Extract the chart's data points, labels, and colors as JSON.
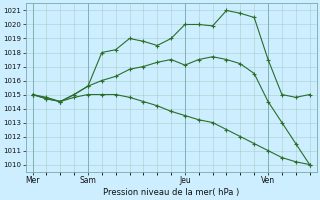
{
  "title": "",
  "xlabel": "Pression niveau de la mer( hPa )",
  "bg_color": "#cceeff",
  "grid_color": "#aacccc",
  "line_color": "#2a6e2a",
  "ylim": [
    1009.5,
    1021.5
  ],
  "yticks": [
    1010,
    1011,
    1012,
    1013,
    1014,
    1015,
    1016,
    1017,
    1018,
    1019,
    1020,
    1021
  ],
  "day_labels": [
    "Mer",
    "Sam",
    "Jeu",
    "Ven"
  ],
  "day_positions": [
    0,
    4,
    11,
    17
  ],
  "xlim": [
    -0.5,
    20.5
  ],
  "line1_x": [
    0,
    1,
    2,
    3,
    4,
    5,
    6,
    7,
    8,
    9,
    10,
    11,
    12,
    13,
    14,
    15,
    16,
    17,
    18,
    19,
    20
  ],
  "line1_y": [
    1015.0,
    1014.7,
    1014.5,
    1015.0,
    1015.6,
    1018.0,
    1018.2,
    1019.0,
    1018.8,
    1018.5,
    1019.0,
    1020.0,
    1020.0,
    1019.9,
    1021.0,
    1020.8,
    1020.5,
    1017.5,
    1015.0,
    1014.8,
    1015.0
  ],
  "line2_x": [
    0,
    1,
    2,
    3,
    4,
    5,
    6,
    7,
    8,
    9,
    10,
    11,
    12,
    13,
    14,
    15,
    16,
    17,
    18,
    19,
    20
  ],
  "line2_y": [
    1015.0,
    1014.8,
    1014.5,
    1015.0,
    1015.6,
    1016.0,
    1016.3,
    1016.8,
    1017.0,
    1017.3,
    1017.5,
    1017.1,
    1017.5,
    1017.7,
    1017.5,
    1017.2,
    1016.5,
    1014.5,
    1013.0,
    1011.5,
    1010.0
  ],
  "line3_x": [
    0,
    1,
    2,
    3,
    4,
    5,
    6,
    7,
    8,
    9,
    10,
    11,
    12,
    13,
    14,
    15,
    16,
    17,
    18,
    19,
    20
  ],
  "line3_y": [
    1015.0,
    1014.7,
    1014.5,
    1014.8,
    1015.0,
    1015.0,
    1015.0,
    1014.8,
    1014.5,
    1014.2,
    1013.8,
    1013.5,
    1013.2,
    1013.0,
    1012.5,
    1012.0,
    1011.5,
    1011.0,
    1010.5,
    1010.2,
    1010.0
  ]
}
